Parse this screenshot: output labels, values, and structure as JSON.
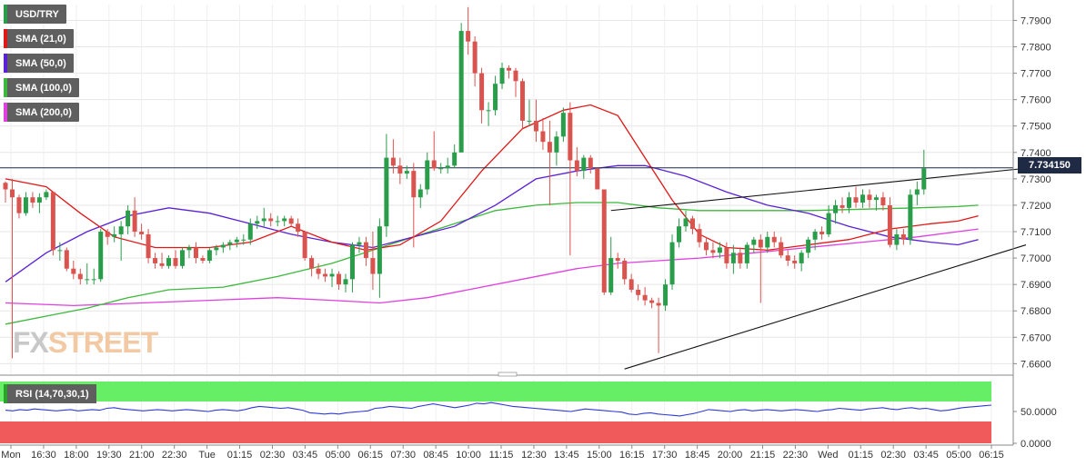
{
  "legend": [
    {
      "label": "USD/TRY",
      "color": "#2a9d4a"
    },
    {
      "label": "SMA (21,0)",
      "color": "#e01818"
    },
    {
      "label": "SMA (50,0)",
      "color": "#5b21d6"
    },
    {
      "label": "SMA (100,0)",
      "color": "#3cb83c"
    },
    {
      "label": "SMA (200,0)",
      "color": "#e040e0"
    }
  ],
  "rsi_label": "RSI (14,70,30,1)",
  "last_price": "7.734150",
  "watermark": {
    "fx": "FX",
    "street": "STREET"
  },
  "colors": {
    "bull": "#2a9d4a",
    "bear": "#d9534f",
    "rsi_line": "#2f3bd6",
    "overbought": "#66ee66",
    "oversold": "#f05a5a"
  },
  "chart_data": {
    "type": "candlestick",
    "title": "USD/TRY",
    "ylim": [
      7.656,
      7.796
    ],
    "y_ticks": [
      "7.6600",
      "7.6700",
      "7.6800",
      "7.6900",
      "7.7000",
      "7.7100",
      "7.7200",
      "7.7300",
      "7.7400",
      "7.7500",
      "7.7600",
      "7.7700",
      "7.7800",
      "7.7900"
    ],
    "x_ticks": [
      "Mon",
      "16:30",
      "18:00",
      "19:30",
      "21:00",
      "22:30",
      "Tue",
      "01:15",
      "02:30",
      "03:45",
      "05:00",
      "06:15",
      "07:30",
      "08:45",
      "10:00",
      "11:15",
      "12:30",
      "13:45",
      "15:00",
      "16:15",
      "17:30",
      "18:45",
      "20:00",
      "21:15",
      "22:30",
      "Wed",
      "01:15",
      "02:30",
      "03:45",
      "05:00",
      "06:15"
    ],
    "candles": [
      [
        7.7285,
        7.729,
        7.721,
        7.726
      ],
      [
        7.726,
        7.73,
        7.662,
        7.723
      ],
      [
        7.723,
        7.724,
        7.715,
        7.717
      ],
      [
        7.717,
        7.725,
        7.716,
        7.723
      ],
      [
        7.723,
        7.725,
        7.719,
        7.721
      ],
      [
        7.721,
        7.7245,
        7.717,
        7.723
      ],
      [
        7.723,
        7.726,
        7.722,
        7.725
      ],
      [
        7.725,
        7.725,
        7.701,
        7.703
      ],
      [
        7.703,
        7.706,
        7.699,
        7.703
      ],
      [
        7.703,
        7.704,
        7.695,
        7.696
      ],
      [
        7.696,
        7.699,
        7.692,
        7.694
      ],
      [
        7.694,
        7.696,
        7.69,
        7.692
      ],
      [
        7.692,
        7.698,
        7.69,
        7.692
      ],
      [
        7.692,
        7.696,
        7.69,
        7.692
      ],
      [
        7.692,
        7.711,
        7.691,
        7.71
      ],
      [
        7.71,
        7.711,
        7.705,
        7.708
      ],
      [
        7.708,
        7.712,
        7.706,
        7.709
      ],
      [
        7.709,
        7.714,
        7.699,
        7.712
      ],
      [
        7.712,
        7.72,
        7.709,
        7.718
      ],
      [
        7.718,
        7.723,
        7.708,
        7.71
      ],
      [
        7.71,
        7.713,
        7.707,
        7.709
      ],
      [
        7.709,
        7.711,
        7.698,
        7.7
      ],
      [
        7.7,
        7.702,
        7.696,
        7.698
      ],
      [
        7.698,
        7.702,
        7.696,
        7.697
      ],
      [
        7.697,
        7.701,
        7.696,
        7.7
      ],
      [
        7.7,
        7.703,
        7.696,
        7.697
      ],
      [
        7.697,
        7.704,
        7.696,
        7.703
      ],
      [
        7.703,
        7.705,
        7.7,
        7.704
      ],
      [
        7.704,
        7.706,
        7.698,
        7.7
      ],
      [
        7.7,
        7.701,
        7.698,
        7.699
      ],
      [
        7.699,
        7.704,
        7.698,
        7.703
      ],
      [
        7.703,
        7.705,
        7.701,
        7.704
      ],
      [
        7.704,
        7.706,
        7.702,
        7.705
      ],
      [
        7.705,
        7.707,
        7.703,
        7.706
      ],
      [
        7.706,
        7.708,
        7.704,
        7.707
      ],
      [
        7.707,
        7.709,
        7.705,
        7.707
      ],
      [
        7.707,
        7.715,
        7.705,
        7.713
      ],
      [
        7.713,
        7.716,
        7.711,
        7.714
      ],
      [
        7.714,
        7.719,
        7.712,
        7.715
      ],
      [
        7.715,
        7.717,
        7.712,
        7.714
      ],
      [
        7.714,
        7.716,
        7.712,
        7.714
      ],
      [
        7.714,
        7.716,
        7.712,
        7.715
      ],
      [
        7.715,
        7.716,
        7.712,
        7.713
      ],
      [
        7.713,
        7.715,
        7.708,
        7.71
      ],
      [
        7.71,
        7.71,
        7.699,
        7.7
      ],
      [
        7.7,
        7.701,
        7.693,
        7.696
      ],
      [
        7.696,
        7.698,
        7.692,
        7.694
      ],
      [
        7.694,
        7.696,
        7.691,
        7.693
      ],
      [
        7.693,
        7.696,
        7.689,
        7.694
      ],
      [
        7.694,
        7.695,
        7.688,
        7.69
      ],
      [
        7.69,
        7.694,
        7.687,
        7.692
      ],
      [
        7.692,
        7.706,
        7.687,
        7.705
      ],
      [
        7.705,
        7.708,
        7.702,
        7.706
      ],
      [
        7.706,
        7.708,
        7.697,
        7.7
      ],
      [
        7.7,
        7.71,
        7.688,
        7.694
      ],
      [
        7.694,
        7.715,
        7.685,
        7.712
      ],
      [
        7.712,
        7.747,
        7.708,
        7.738
      ],
      [
        7.738,
        7.745,
        7.732,
        7.735
      ],
      [
        7.735,
        7.738,
        7.728,
        7.732
      ],
      [
        7.732,
        7.735,
        7.73,
        7.733
      ],
      [
        7.733,
        7.736,
        7.704,
        7.723
      ],
      [
        7.723,
        7.728,
        7.719,
        7.726
      ],
      [
        7.726,
        7.74,
        7.724,
        7.737
      ],
      [
        7.737,
        7.748,
        7.733,
        7.734
      ],
      [
        7.734,
        7.736,
        7.732,
        7.734
      ],
      [
        7.734,
        7.738,
        7.732,
        7.735
      ],
      [
        7.735,
        7.743,
        7.734,
        7.74
      ],
      [
        7.74,
        7.789,
        7.74,
        7.786
      ],
      [
        7.786,
        7.795,
        7.777,
        7.782
      ],
      [
        7.782,
        7.784,
        7.765,
        7.77
      ],
      [
        7.77,
        7.772,
        7.751,
        7.756
      ],
      [
        7.756,
        7.759,
        7.75,
        7.756
      ],
      [
        7.756,
        7.769,
        7.754,
        7.766
      ],
      [
        7.766,
        7.774,
        7.764,
        7.772
      ],
      [
        7.772,
        7.773,
        7.768,
        7.771
      ],
      [
        7.771,
        7.772,
        7.761,
        7.767
      ],
      [
        7.767,
        7.768,
        7.749,
        7.752
      ],
      [
        7.752,
        7.76,
        7.75,
        7.752
      ],
      [
        7.752,
        7.76,
        7.744,
        7.748
      ],
      [
        7.748,
        7.753,
        7.741,
        7.744
      ],
      [
        7.744,
        7.752,
        7.72,
        7.74
      ],
      [
        7.74,
        7.748,
        7.735,
        7.746
      ],
      [
        7.746,
        7.757,
        7.744,
        7.755
      ],
      [
        7.755,
        7.759,
        7.701,
        7.737
      ],
      [
        7.737,
        7.742,
        7.731,
        7.733
      ],
      [
        7.733,
        7.739,
        7.73,
        7.738
      ],
      [
        7.738,
        7.739,
        7.732,
        7.734
      ],
      [
        7.734,
        7.734,
        7.726,
        7.726
      ],
      [
        7.726,
        7.726,
        7.686,
        7.687
      ],
      [
        7.687,
        7.708,
        7.686,
        7.7
      ],
      [
        7.7,
        7.702,
        7.696,
        7.699
      ],
      [
        7.699,
        7.7,
        7.69,
        7.692
      ],
      [
        7.692,
        7.694,
        7.687,
        7.688
      ],
      [
        7.688,
        7.69,
        7.684,
        7.686
      ],
      [
        7.686,
        7.689,
        7.682,
        7.684
      ],
      [
        7.684,
        7.685,
        7.681,
        7.683
      ],
      [
        7.683,
        7.685,
        7.664,
        7.682
      ],
      [
        7.682,
        7.692,
        7.68,
        7.69
      ],
      [
        7.69,
        7.709,
        7.688,
        7.706
      ],
      [
        7.706,
        7.715,
        7.704,
        7.712
      ],
      [
        7.712,
        7.718,
        7.71,
        7.715
      ],
      [
        7.715,
        7.716,
        7.709,
        7.711
      ],
      [
        7.711,
        7.713,
        7.704,
        7.706
      ],
      [
        7.706,
        7.708,
        7.701,
        7.703
      ],
      [
        7.703,
        7.706,
        7.7,
        7.702
      ],
      [
        7.702,
        7.706,
        7.7,
        7.704
      ],
      [
        7.704,
        7.706,
        7.696,
        7.698
      ],
      [
        7.698,
        7.705,
        7.694,
        7.702
      ],
      [
        7.702,
        7.704,
        7.696,
        7.698
      ],
      [
        7.698,
        7.706,
        7.696,
        7.705
      ],
      [
        7.705,
        7.708,
        7.702,
        7.707
      ],
      [
        7.707,
        7.709,
        7.683,
        7.704
      ],
      [
        7.704,
        7.71,
        7.702,
        7.708
      ],
      [
        7.708,
        7.71,
        7.704,
        7.706
      ],
      [
        7.706,
        7.708,
        7.7,
        7.701
      ],
      [
        7.701,
        7.703,
        7.697,
        7.699
      ],
      [
        7.699,
        7.701,
        7.696,
        7.698
      ],
      [
        7.698,
        7.703,
        7.695,
        7.702
      ],
      [
        7.702,
        7.708,
        7.7,
        7.707
      ],
      [
        7.707,
        7.711,
        7.703,
        7.71
      ],
      [
        7.71,
        7.712,
        7.707,
        7.709
      ],
      [
        7.709,
        7.72,
        7.708,
        7.717
      ],
      [
        7.717,
        7.722,
        7.713,
        7.72
      ],
      [
        7.72,
        7.723,
        7.717,
        7.719
      ],
      [
        7.719,
        7.725,
        7.717,
        7.723
      ],
      [
        7.723,
        7.727,
        7.719,
        7.721
      ],
      [
        7.721,
        7.726,
        7.719,
        7.724
      ],
      [
        7.724,
        7.726,
        7.719,
        7.722
      ],
      [
        7.722,
        7.724,
        7.718,
        7.723
      ],
      [
        7.723,
        7.725,
        7.718,
        7.72
      ],
      [
        7.72,
        7.723,
        7.704,
        7.705
      ],
      [
        7.705,
        7.711,
        7.703,
        7.709
      ],
      [
        7.709,
        7.711,
        7.705,
        7.707
      ],
      [
        7.707,
        7.726,
        7.705,
        7.724
      ],
      [
        7.724,
        7.729,
        7.72,
        7.726
      ],
      [
        7.726,
        7.741,
        7.724,
        7.734
      ]
    ],
    "sma21": [
      [
        0,
        7.73
      ],
      [
        6,
        7.727
      ],
      [
        11,
        7.717
      ],
      [
        16,
        7.708
      ],
      [
        22,
        7.704
      ],
      [
        30,
        7.704
      ],
      [
        36,
        7.706
      ],
      [
        42,
        7.712
      ],
      [
        48,
        7.706
      ],
      [
        53,
        7.703
      ],
      [
        58,
        7.705
      ],
      [
        64,
        7.714
      ],
      [
        70,
        7.733
      ],
      [
        76,
        7.749
      ],
      [
        82,
        7.756
      ],
      [
        86,
        7.758
      ],
      [
        90,
        7.754
      ],
      [
        94,
        7.738
      ],
      [
        98,
        7.722
      ],
      [
        102,
        7.709
      ],
      [
        106,
        7.704
      ],
      [
        112,
        7.703
      ],
      [
        118,
        7.705
      ],
      [
        124,
        7.707
      ],
      [
        130,
        7.711
      ],
      [
        136,
        7.713
      ],
      [
        140,
        7.714
      ],
      [
        143,
        7.716
      ]
    ],
    "sma50": [
      [
        0,
        7.691
      ],
      [
        6,
        7.702
      ],
      [
        12,
        7.71
      ],
      [
        18,
        7.716
      ],
      [
        24,
        7.719
      ],
      [
        30,
        7.717
      ],
      [
        36,
        7.713
      ],
      [
        42,
        7.709
      ],
      [
        48,
        7.706
      ],
      [
        54,
        7.704
      ],
      [
        60,
        7.708
      ],
      [
        66,
        7.712
      ],
      [
        72,
        7.72
      ],
      [
        78,
        7.73
      ],
      [
        84,
        7.733
      ],
      [
        90,
        7.735
      ],
      [
        94,
        7.735
      ],
      [
        100,
        7.731
      ],
      [
        106,
        7.725
      ],
      [
        112,
        7.72
      ],
      [
        118,
        7.717
      ],
      [
        124,
        7.712
      ],
      [
        130,
        7.708
      ],
      [
        136,
        7.706
      ],
      [
        140,
        7.705
      ],
      [
        143,
        7.707
      ]
    ],
    "sma100": [
      [
        0,
        7.675
      ],
      [
        6,
        7.678
      ],
      [
        12,
        7.681
      ],
      [
        18,
        7.685
      ],
      [
        24,
        7.688
      ],
      [
        32,
        7.689
      ],
      [
        40,
        7.693
      ],
      [
        48,
        7.698
      ],
      [
        54,
        7.703
      ],
      [
        60,
        7.708
      ],
      [
        66,
        7.713
      ],
      [
        72,
        7.718
      ],
      [
        78,
        7.72
      ],
      [
        84,
        7.721
      ],
      [
        90,
        7.721
      ],
      [
        96,
        7.719
      ],
      [
        102,
        7.718
      ],
      [
        110,
        7.718
      ],
      [
        118,
        7.718
      ],
      [
        126,
        7.7185
      ],
      [
        134,
        7.719
      ],
      [
        140,
        7.7195
      ],
      [
        143,
        7.72
      ]
    ],
    "sma200": [
      [
        0,
        7.683
      ],
      [
        10,
        7.682
      ],
      [
        20,
        7.683
      ],
      [
        30,
        7.684
      ],
      [
        40,
        7.685
      ],
      [
        48,
        7.684
      ],
      [
        55,
        7.683
      ],
      [
        62,
        7.685
      ],
      [
        68,
        7.688
      ],
      [
        76,
        7.692
      ],
      [
        84,
        7.696
      ],
      [
        90,
        7.698
      ],
      [
        96,
        7.699
      ],
      [
        102,
        7.7
      ],
      [
        110,
        7.702
      ],
      [
        118,
        7.704
      ],
      [
        126,
        7.706
      ],
      [
        134,
        7.708
      ],
      [
        140,
        7.71
      ],
      [
        143,
        7.711
      ]
    ],
    "trendlines": [
      {
        "from": [
          89,
          7.718
        ],
        "to": [
          150,
          7.734
        ]
      },
      {
        "from": [
          91,
          7.658
        ],
        "to": [
          150,
          7.705
        ]
      }
    ],
    "rsi": {
      "y_ticks": [
        "50.0000",
        "0.0000"
      ],
      "values": [
        52,
        51,
        53,
        52,
        54,
        53,
        52,
        51,
        52,
        53,
        51,
        52,
        53,
        52,
        55,
        56,
        54,
        53,
        52,
        51,
        52,
        53,
        52,
        51,
        52,
        53,
        52,
        51,
        50,
        52,
        53,
        52,
        51,
        53,
        56,
        58,
        57,
        56,
        55,
        56,
        54,
        52,
        48,
        47,
        46,
        47,
        46,
        48,
        49,
        50,
        51,
        55,
        56,
        58,
        57,
        56,
        55,
        58,
        60,
        62,
        60,
        58,
        56,
        58,
        60,
        63,
        62,
        64,
        62,
        60,
        58,
        57,
        56,
        55,
        54,
        53,
        52,
        51,
        50,
        52,
        54,
        53,
        52,
        51,
        50,
        49,
        46,
        45,
        47,
        48,
        46,
        45,
        44,
        43,
        45,
        47,
        50,
        53,
        52,
        51,
        50,
        52,
        53,
        51,
        52,
        53,
        52,
        51,
        52,
        53,
        52,
        51,
        50,
        52,
        53,
        55,
        54,
        53,
        52,
        54,
        55,
        56,
        54,
        53,
        55,
        56,
        54,
        55,
        53,
        51,
        52,
        54,
        56,
        57,
        58,
        59,
        60
      ]
    }
  }
}
